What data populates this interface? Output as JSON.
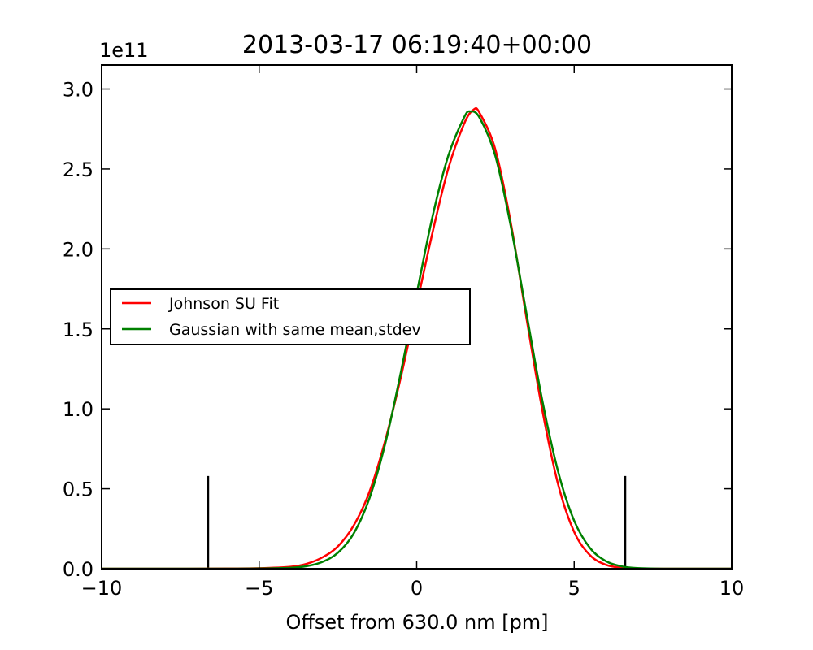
{
  "chart_data": {
    "type": "line",
    "title": "2013-03-17 06:19:40+00:00",
    "xlabel": "Offset from 630.0 nm [pm]",
    "ylabel": "",
    "y_offset_label": "1e11",
    "y_multiplier": 100000000000.0,
    "xlim": [
      -10,
      10
    ],
    "ylim": [
      0,
      3.15
    ],
    "x_ticks": [
      -10,
      -5,
      0,
      5,
      10
    ],
    "x_tick_labels": [
      "−10",
      "−5",
      "0",
      "5",
      "10"
    ],
    "y_ticks": [
      0,
      0.5,
      1.0,
      1.5,
      2.0,
      2.5,
      3.0
    ],
    "y_tick_labels": [
      "0.0",
      "0.5",
      "1.0",
      "1.5",
      "2.0",
      "2.5",
      "3.0"
    ],
    "grid": false,
    "legend_position": "center-left",
    "series": [
      {
        "name": "Johnson SU Fit",
        "color": "#ff0000",
        "x": [
          -10,
          -8,
          -6,
          -5,
          -4,
          -3.5,
          -3,
          -2.5,
          -2,
          -1.5,
          -1,
          -0.5,
          0,
          0.5,
          1,
          1.5,
          1.8,
          2,
          2.5,
          3,
          3.5,
          4,
          4.5,
          5,
          5.5,
          6,
          6.5,
          7,
          8,
          10
        ],
        "y": [
          0,
          0,
          0.001,
          0.003,
          0.012,
          0.03,
          0.07,
          0.14,
          0.27,
          0.48,
          0.8,
          1.2,
          1.65,
          2.1,
          2.5,
          2.78,
          2.87,
          2.85,
          2.62,
          2.15,
          1.55,
          0.98,
          0.52,
          0.23,
          0.085,
          0.025,
          0.006,
          0.001,
          0,
          0
        ]
      },
      {
        "name": "Gaussian with same mean,stdev",
        "color": "#008000",
        "x": [
          -10,
          -8,
          -6,
          -5,
          -4,
          -3.5,
          -3,
          -2.5,
          -2,
          -1.5,
          -1,
          -0.5,
          0,
          0.5,
          1,
          1.5,
          1.7,
          2,
          2.5,
          3,
          3.5,
          4,
          4.5,
          5,
          5.5,
          6,
          6.5,
          7,
          8,
          10
        ],
        "y": [
          0,
          0,
          0,
          0.001,
          0.006,
          0.016,
          0.042,
          0.1,
          0.22,
          0.44,
          0.78,
          1.23,
          1.72,
          2.2,
          2.58,
          2.82,
          2.86,
          2.82,
          2.58,
          2.13,
          1.58,
          1.04,
          0.6,
          0.3,
          0.13,
          0.048,
          0.015,
          0.004,
          0,
          0
        ]
      }
    ],
    "vertical_markers": {
      "color": "#000000",
      "x": [
        -6.62,
        6.62
      ],
      "height": 0.58
    }
  }
}
